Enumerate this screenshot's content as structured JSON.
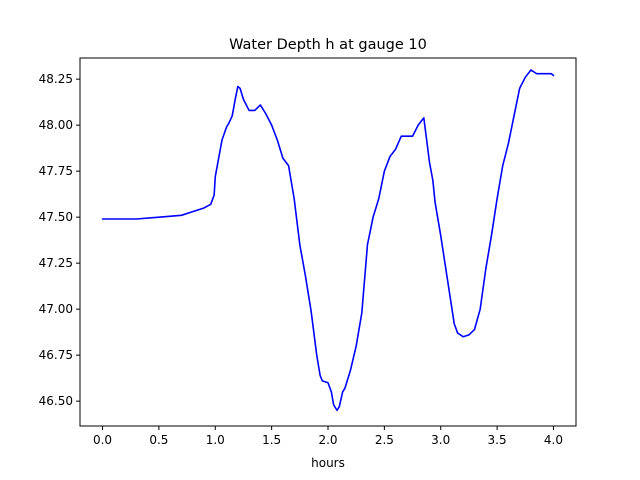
{
  "chart_data": {
    "type": "line",
    "title": "Water Depth h at gauge 10",
    "xlabel": "hours",
    "ylabel": "",
    "xlim": [
      -0.2,
      4.2
    ],
    "ylim": [
      46.365,
      48.365
    ],
    "grid": false,
    "xticks": [
      {
        "value": 0.0,
        "label": "0.0"
      },
      {
        "value": 0.5,
        "label": "0.5"
      },
      {
        "value": 1.0,
        "label": "1.0"
      },
      {
        "value": 1.5,
        "label": "1.5"
      },
      {
        "value": 2.0,
        "label": "2.0"
      },
      {
        "value": 2.5,
        "label": "2.5"
      },
      {
        "value": 3.0,
        "label": "3.0"
      },
      {
        "value": 3.5,
        "label": "3.5"
      },
      {
        "value": 4.0,
        "label": "4.0"
      }
    ],
    "yticks": [
      {
        "value": 46.5,
        "label": "46.50"
      },
      {
        "value": 46.75,
        "label": "46.75"
      },
      {
        "value": 47.0,
        "label": "47.00"
      },
      {
        "value": 47.25,
        "label": "47.25"
      },
      {
        "value": 47.5,
        "label": "47.50"
      },
      {
        "value": 47.75,
        "label": "47.75"
      },
      {
        "value": 48.0,
        "label": "48.00"
      },
      {
        "value": 48.25,
        "label": "48.25"
      }
    ],
    "series": [
      {
        "color": "#0000ff",
        "x": [
          0.0,
          0.3,
          0.5,
          0.7,
          0.8,
          0.9,
          0.96,
          0.99,
          1.0,
          1.03,
          1.06,
          1.1,
          1.12,
          1.15,
          1.18,
          1.2,
          1.22,
          1.25,
          1.3,
          1.35,
          1.4,
          1.45,
          1.5,
          1.55,
          1.6,
          1.65,
          1.7,
          1.73,
          1.75,
          1.8,
          1.85,
          1.9,
          1.93,
          1.95,
          2.0,
          2.03,
          2.05,
          2.08,
          2.1,
          2.13,
          2.15,
          2.2,
          2.25,
          2.3,
          2.35,
          2.4,
          2.45,
          2.5,
          2.55,
          2.6,
          2.65,
          2.7,
          2.75,
          2.8,
          2.85,
          2.9,
          2.93,
          2.95,
          3.0,
          3.05,
          3.1,
          3.12,
          3.15,
          3.2,
          3.25,
          3.3,
          3.35,
          3.4,
          3.45,
          3.5,
          3.55,
          3.6,
          3.65,
          3.7,
          3.75,
          3.8,
          3.85,
          3.9,
          3.95,
          3.98,
          4.0
        ],
        "y": [
          47.49,
          47.49,
          47.5,
          47.51,
          47.53,
          47.55,
          47.57,
          47.62,
          47.72,
          47.82,
          47.92,
          47.99,
          48.01,
          48.05,
          48.15,
          48.21,
          48.2,
          48.14,
          48.08,
          48.08,
          48.11,
          48.06,
          48.0,
          47.92,
          47.82,
          47.78,
          47.6,
          47.45,
          47.35,
          47.18,
          46.99,
          46.75,
          46.64,
          46.61,
          46.6,
          46.55,
          46.48,
          46.45,
          46.47,
          46.55,
          46.57,
          46.67,
          46.8,
          46.98,
          47.35,
          47.5,
          47.6,
          47.75,
          47.83,
          47.87,
          47.94,
          47.94,
          47.94,
          48.0,
          48.04,
          47.8,
          47.7,
          47.58,
          47.4,
          47.2,
          47.0,
          46.92,
          46.87,
          46.85,
          46.86,
          46.89,
          47.0,
          47.22,
          47.4,
          47.6,
          47.78,
          47.9,
          48.05,
          48.2,
          48.26,
          48.3,
          48.28,
          48.28,
          48.28,
          48.28,
          48.27
        ]
      }
    ]
  }
}
